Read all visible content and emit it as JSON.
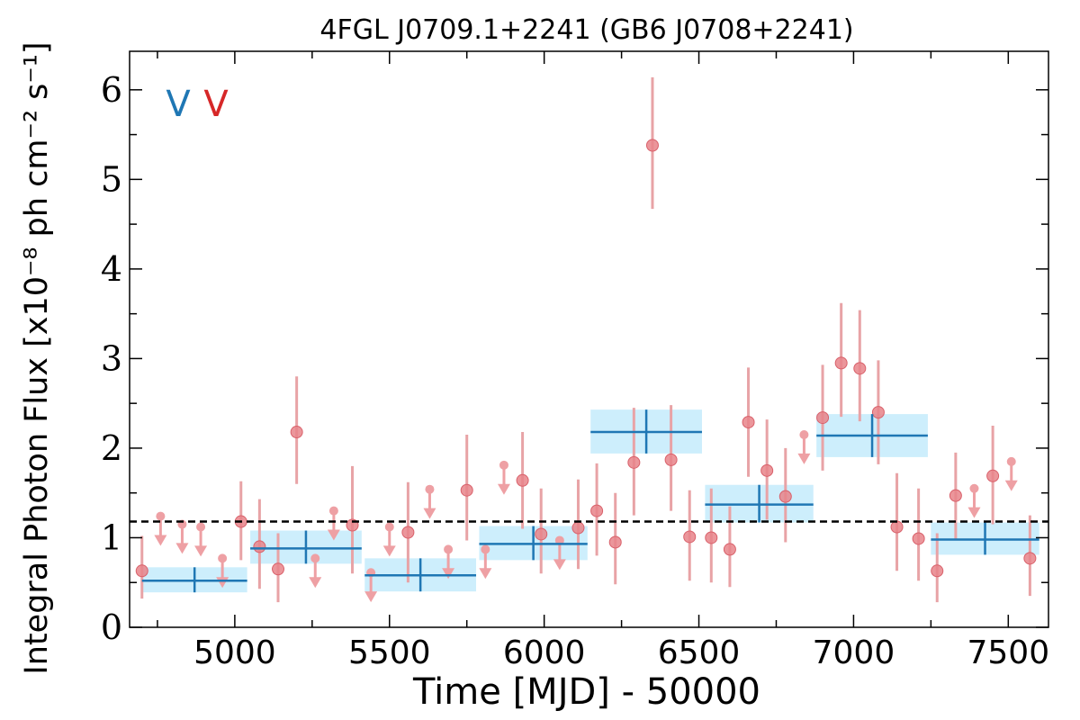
{
  "chart_data": {
    "type": "scatter",
    "title": "4FGL J0709.1+2241 (GB6 J0708+2241)",
    "xlabel": "Time [MJD] - 50000",
    "ylabel": "Integral Photon Flux [x10⁻⁸ ph cm⁻² s⁻¹]",
    "xlim": [
      4660,
      7630
    ],
    "ylim": [
      0,
      6.43
    ],
    "xticks": [
      5000,
      5500,
      6000,
      6500,
      7000,
      7500
    ],
    "yticks": [
      0,
      1,
      2,
      3,
      4,
      5,
      6
    ],
    "reference_line": {
      "y": 1.18,
      "style": "dashed",
      "color": "#000000"
    },
    "legend": {
      "placement": "top-left",
      "markers": [
        {
          "symbol": "V",
          "color": "#1f77b4"
        },
        {
          "symbol": "V",
          "color": "#d62728"
        }
      ]
    },
    "colors": {
      "block_line": "#1f77b4",
      "block_fill": "#cdeefc",
      "points": "#e8848a",
      "point_edge": "#d9616b",
      "errorbar": "#e8a3a6",
      "upper_limit": "#eea0a4"
    },
    "series": [
      {
        "kind": "bayesian_blocks",
        "blocks": [
          {
            "x0": 4700,
            "x1": 5040,
            "y": 0.52,
            "ylo": 0.39,
            "yhi": 0.67,
            "xc": 4870
          },
          {
            "x0": 5050,
            "x1": 5410,
            "y": 0.88,
            "ylo": 0.71,
            "yhi": 1.08,
            "xc": 5230
          },
          {
            "x0": 5420,
            "x1": 5780,
            "y": 0.58,
            "ylo": 0.4,
            "yhi": 0.77,
            "xc": 5600
          },
          {
            "x0": 5790,
            "x1": 6140,
            "y": 0.93,
            "ylo": 0.75,
            "yhi": 1.13,
            "xc": 5965
          },
          {
            "x0": 6150,
            "x1": 6510,
            "y": 2.18,
            "ylo": 1.94,
            "yhi": 2.43,
            "xc": 6330
          },
          {
            "x0": 6520,
            "x1": 6870,
            "y": 1.37,
            "ylo": 1.17,
            "yhi": 1.59,
            "xc": 6695
          },
          {
            "x0": 6880,
            "x1": 7240,
            "y": 2.14,
            "ylo": 1.9,
            "yhi": 2.38,
            "xc": 7060
          },
          {
            "x0": 7250,
            "x1": 7600,
            "y": 0.98,
            "ylo": 0.81,
            "yhi": 1.17,
            "xc": 7425
          }
        ]
      },
      {
        "kind": "detections",
        "points": [
          {
            "x": 4700,
            "y": 0.63,
            "lo": 0.32,
            "hi": 1.02
          },
          {
            "x": 5020,
            "y": 1.18,
            "lo": 0.75,
            "hi": 1.63
          },
          {
            "x": 5080,
            "y": 0.9,
            "lo": 0.43,
            "hi": 1.43
          },
          {
            "x": 5140,
            "y": 0.65,
            "lo": 0.28,
            "hi": 1.05
          },
          {
            "x": 5200,
            "y": 2.18,
            "lo": 1.6,
            "hi": 2.8
          },
          {
            "x": 5380,
            "y": 1.14,
            "lo": 0.6,
            "hi": 1.8
          },
          {
            "x": 5560,
            "y": 1.06,
            "lo": 0.5,
            "hi": 1.62
          },
          {
            "x": 5750,
            "y": 1.53,
            "lo": 0.97,
            "hi": 2.15
          },
          {
            "x": 5930,
            "y": 1.64,
            "lo": 1.1,
            "hi": 2.18
          },
          {
            "x": 5990,
            "y": 1.04,
            "lo": 0.6,
            "hi": 1.55
          },
          {
            "x": 6110,
            "y": 1.11,
            "lo": 0.65,
            "hi": 1.65
          },
          {
            "x": 6170,
            "y": 1.3,
            "lo": 0.8,
            "hi": 1.83
          },
          {
            "x": 6230,
            "y": 0.95,
            "lo": 0.48,
            "hi": 1.5
          },
          {
            "x": 6290,
            "y": 1.84,
            "lo": 1.25,
            "hi": 2.45
          },
          {
            "x": 6350,
            "y": 5.38,
            "lo": 4.67,
            "hi": 6.14
          },
          {
            "x": 6410,
            "y": 1.87,
            "lo": 1.3,
            "hi": 2.48
          },
          {
            "x": 6470,
            "y": 1.01,
            "lo": 0.52,
            "hi": 1.53
          },
          {
            "x": 6540,
            "y": 1.0,
            "lo": 0.5,
            "hi": 1.55
          },
          {
            "x": 6600,
            "y": 0.87,
            "lo": 0.45,
            "hi": 1.35
          },
          {
            "x": 6660,
            "y": 2.29,
            "lo": 1.68,
            "hi": 2.9
          },
          {
            "x": 6720,
            "y": 1.75,
            "lo": 1.2,
            "hi": 2.32
          },
          {
            "x": 6780,
            "y": 1.46,
            "lo": 0.95,
            "hi": 2.0
          },
          {
            "x": 6900,
            "y": 2.34,
            "lo": 1.75,
            "hi": 2.93
          },
          {
            "x": 6960,
            "y": 2.95,
            "lo": 2.35,
            "hi": 3.62
          },
          {
            "x": 7020,
            "y": 2.89,
            "lo": 2.3,
            "hi": 3.54
          },
          {
            "x": 7080,
            "y": 2.4,
            "lo": 1.82,
            "hi": 2.98
          },
          {
            "x": 7140,
            "y": 1.12,
            "lo": 0.63,
            "hi": 1.72
          },
          {
            "x": 7210,
            "y": 0.99,
            "lo": 0.52,
            "hi": 1.55
          },
          {
            "x": 7270,
            "y": 0.63,
            "lo": 0.28,
            "hi": 1.05
          },
          {
            "x": 7330,
            "y": 1.47,
            "lo": 0.98,
            "hi": 1.95
          },
          {
            "x": 7450,
            "y": 1.69,
            "lo": 1.15,
            "hi": 2.25
          },
          {
            "x": 7570,
            "y": 0.77,
            "lo": 0.35,
            "hi": 1.25
          }
        ]
      },
      {
        "kind": "upper_limits",
        "points": [
          {
            "x": 4760,
            "y": 1.24
          },
          {
            "x": 4830,
            "y": 1.15
          },
          {
            "x": 4890,
            "y": 1.12
          },
          {
            "x": 4960,
            "y": 0.77
          },
          {
            "x": 5260,
            "y": 0.77
          },
          {
            "x": 5320,
            "y": 1.3
          },
          {
            "x": 5440,
            "y": 0.61
          },
          {
            "x": 5500,
            "y": 1.12
          },
          {
            "x": 5630,
            "y": 1.54
          },
          {
            "x": 5690,
            "y": 0.87
          },
          {
            "x": 5810,
            "y": 0.87
          },
          {
            "x": 5870,
            "y": 1.81
          },
          {
            "x": 6050,
            "y": 0.97
          },
          {
            "x": 6840,
            "y": 2.15
          },
          {
            "x": 7390,
            "y": 1.55
          },
          {
            "x": 7510,
            "y": 1.85
          }
        ]
      }
    ]
  }
}
